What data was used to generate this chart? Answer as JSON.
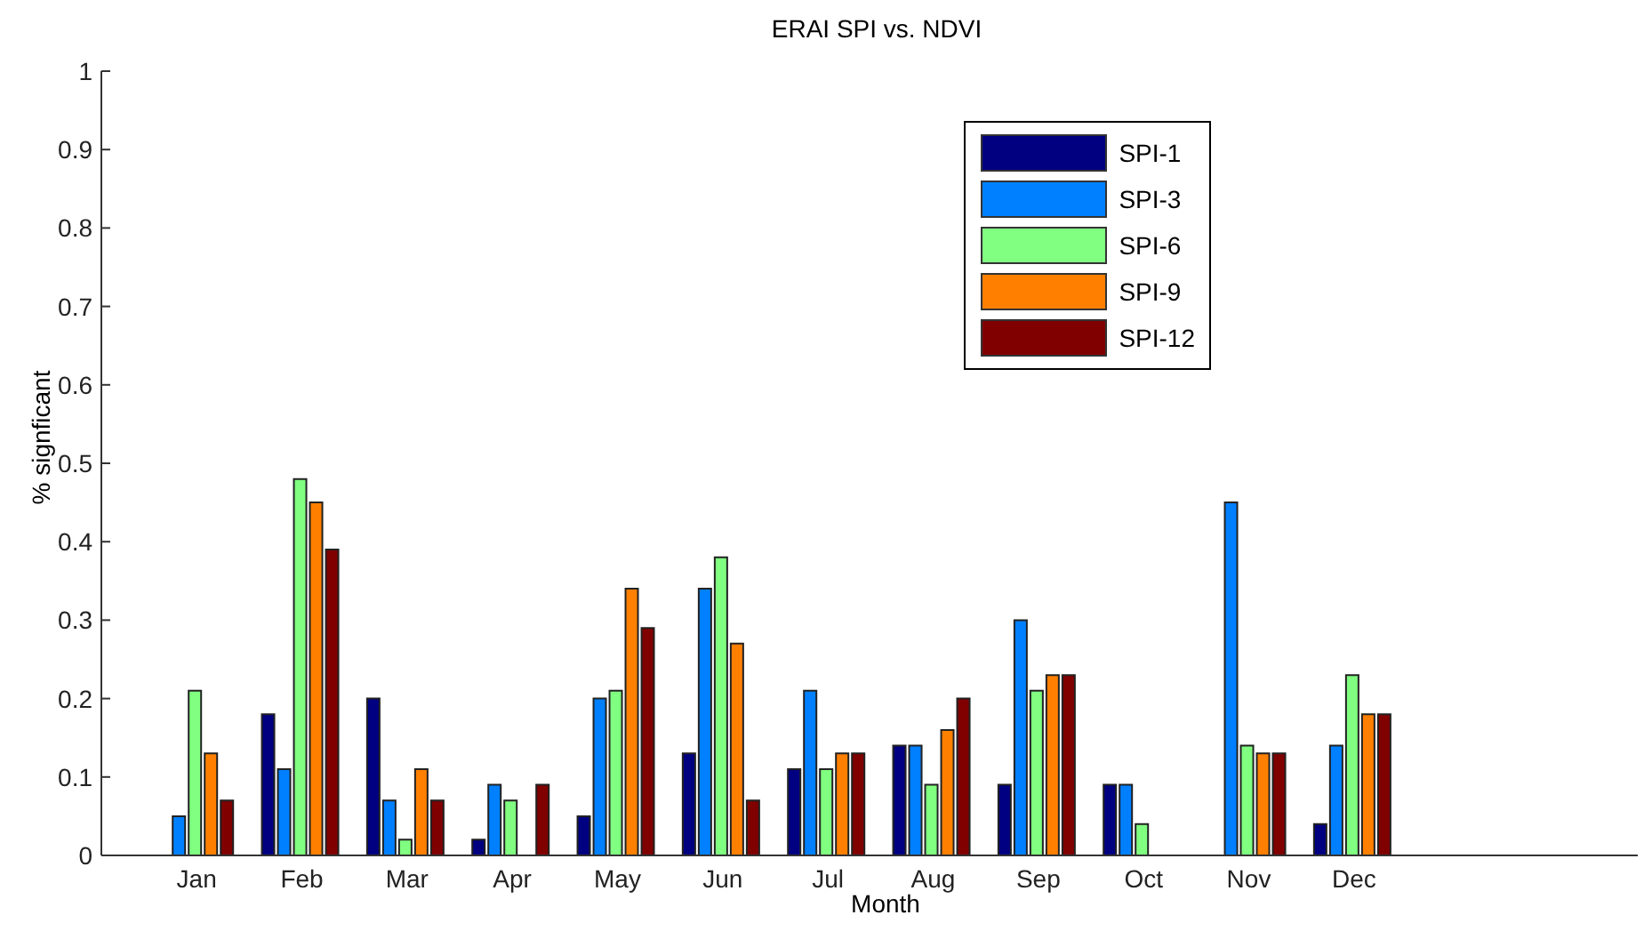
{
  "chart_data": {
    "type": "bar",
    "title": "ERAI SPI vs. NDVI",
    "xlabel": "Month",
    "ylabel": "% signficant",
    "categories": [
      "Jan",
      "Feb",
      "Mar",
      "Apr",
      "May",
      "Jun",
      "Jul",
      "Aug",
      "Sep",
      "Oct",
      "Nov",
      "Dec"
    ],
    "series": [
      {
        "name": "SPI-1",
        "color": "#000080",
        "values": [
          0,
          0.18,
          0.2,
          0.02,
          0.05,
          0.13,
          0.11,
          0.14,
          0.09,
          0.09,
          0,
          0.04
        ]
      },
      {
        "name": "SPI-3",
        "color": "#0080ff",
        "values": [
          0.05,
          0.11,
          0.07,
          0.09,
          0.2,
          0.34,
          0.21,
          0.14,
          0.3,
          0.09,
          0.45,
          0.14
        ]
      },
      {
        "name": "SPI-6",
        "color": "#80ff80",
        "values": [
          0.21,
          0.48,
          0.02,
          0.07,
          0.21,
          0.38,
          0.11,
          0.09,
          0.21,
          0.04,
          0.14,
          0.23
        ]
      },
      {
        "name": "SPI-9",
        "color": "#ff8000",
        "values": [
          0.13,
          0.45,
          0.11,
          0,
          0.34,
          0.27,
          0.13,
          0.16,
          0.23,
          0,
          0.13,
          0.18
        ]
      },
      {
        "name": "SPI-12",
        "color": "#800000",
        "values": [
          0.07,
          0.39,
          0.07,
          0.09,
          0.29,
          0.07,
          0.13,
          0.2,
          0.23,
          0,
          0.13,
          0.18
        ]
      }
    ],
    "ylim": [
      0,
      1
    ],
    "yticks": [
      0,
      0.1,
      0.2,
      0.3,
      0.4,
      0.5,
      0.6,
      0.7,
      0.8,
      0.9,
      1
    ],
    "legend": "top right"
  }
}
